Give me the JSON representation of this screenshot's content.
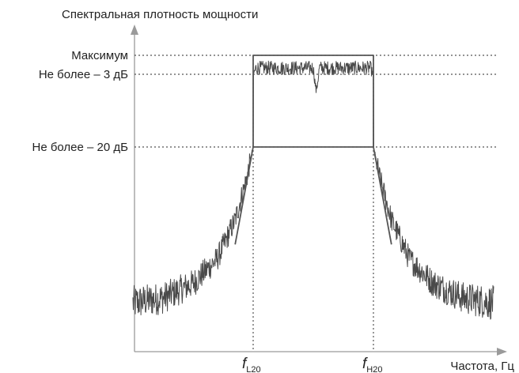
{
  "chart_data": {
    "type": "line",
    "title": "Спектральная плотность мощности",
    "xlabel": "Частота, Гц",
    "ylabel": "",
    "y_levels": [
      {
        "name": "Максимум",
        "value": 0,
        "unit": "dB"
      },
      {
        "name": "Не более – 3 дБ",
        "value": -3,
        "unit": "dB"
      },
      {
        "name": "Не более – 20 дБ",
        "value": -20,
        "unit": "dB"
      }
    ],
    "x_markers": [
      {
        "symbol": "f",
        "subscript": "L20",
        "x": -1
      },
      {
        "symbol": "f",
        "subscript": "H20",
        "x": 1
      }
    ],
    "xlim": [
      -3.0,
      3.05
    ],
    "ylim": [
      -62,
      2
    ],
    "series": [
      {
        "type": "mask",
        "x": [
          -1,
          -1,
          1,
          1
        ],
        "y": [
          -20,
          0,
          0,
          -20
        ]
      },
      {
        "type": "mask",
        "x": [
          -1.3,
          -1,
          1,
          1.3
        ],
        "y": [
          -40,
          -20,
          -20,
          -40
        ]
      },
      {
        "type": "measured-trace",
        "x": [
          -3.0,
          -2.5,
          -2.0,
          -1.6,
          -1.3,
          -1.1,
          -1.0,
          -1.0,
          -0.95,
          -0.5,
          0,
          0.05,
          0.1,
          0.5,
          0.95,
          1.0,
          1.0,
          1.1,
          1.3,
          1.6,
          2.0,
          2.5,
          3.0
        ],
        "y": [
          -52,
          -51,
          -48,
          -43,
          -35,
          -26,
          -20,
          -3,
          -2,
          -2,
          -2,
          -7,
          -2,
          -2,
          -2,
          -3,
          -20,
          -26,
          -35,
          -43,
          -48,
          -51,
          -52
        ]
      }
    ],
    "grid": false,
    "legend": "none"
  }
}
